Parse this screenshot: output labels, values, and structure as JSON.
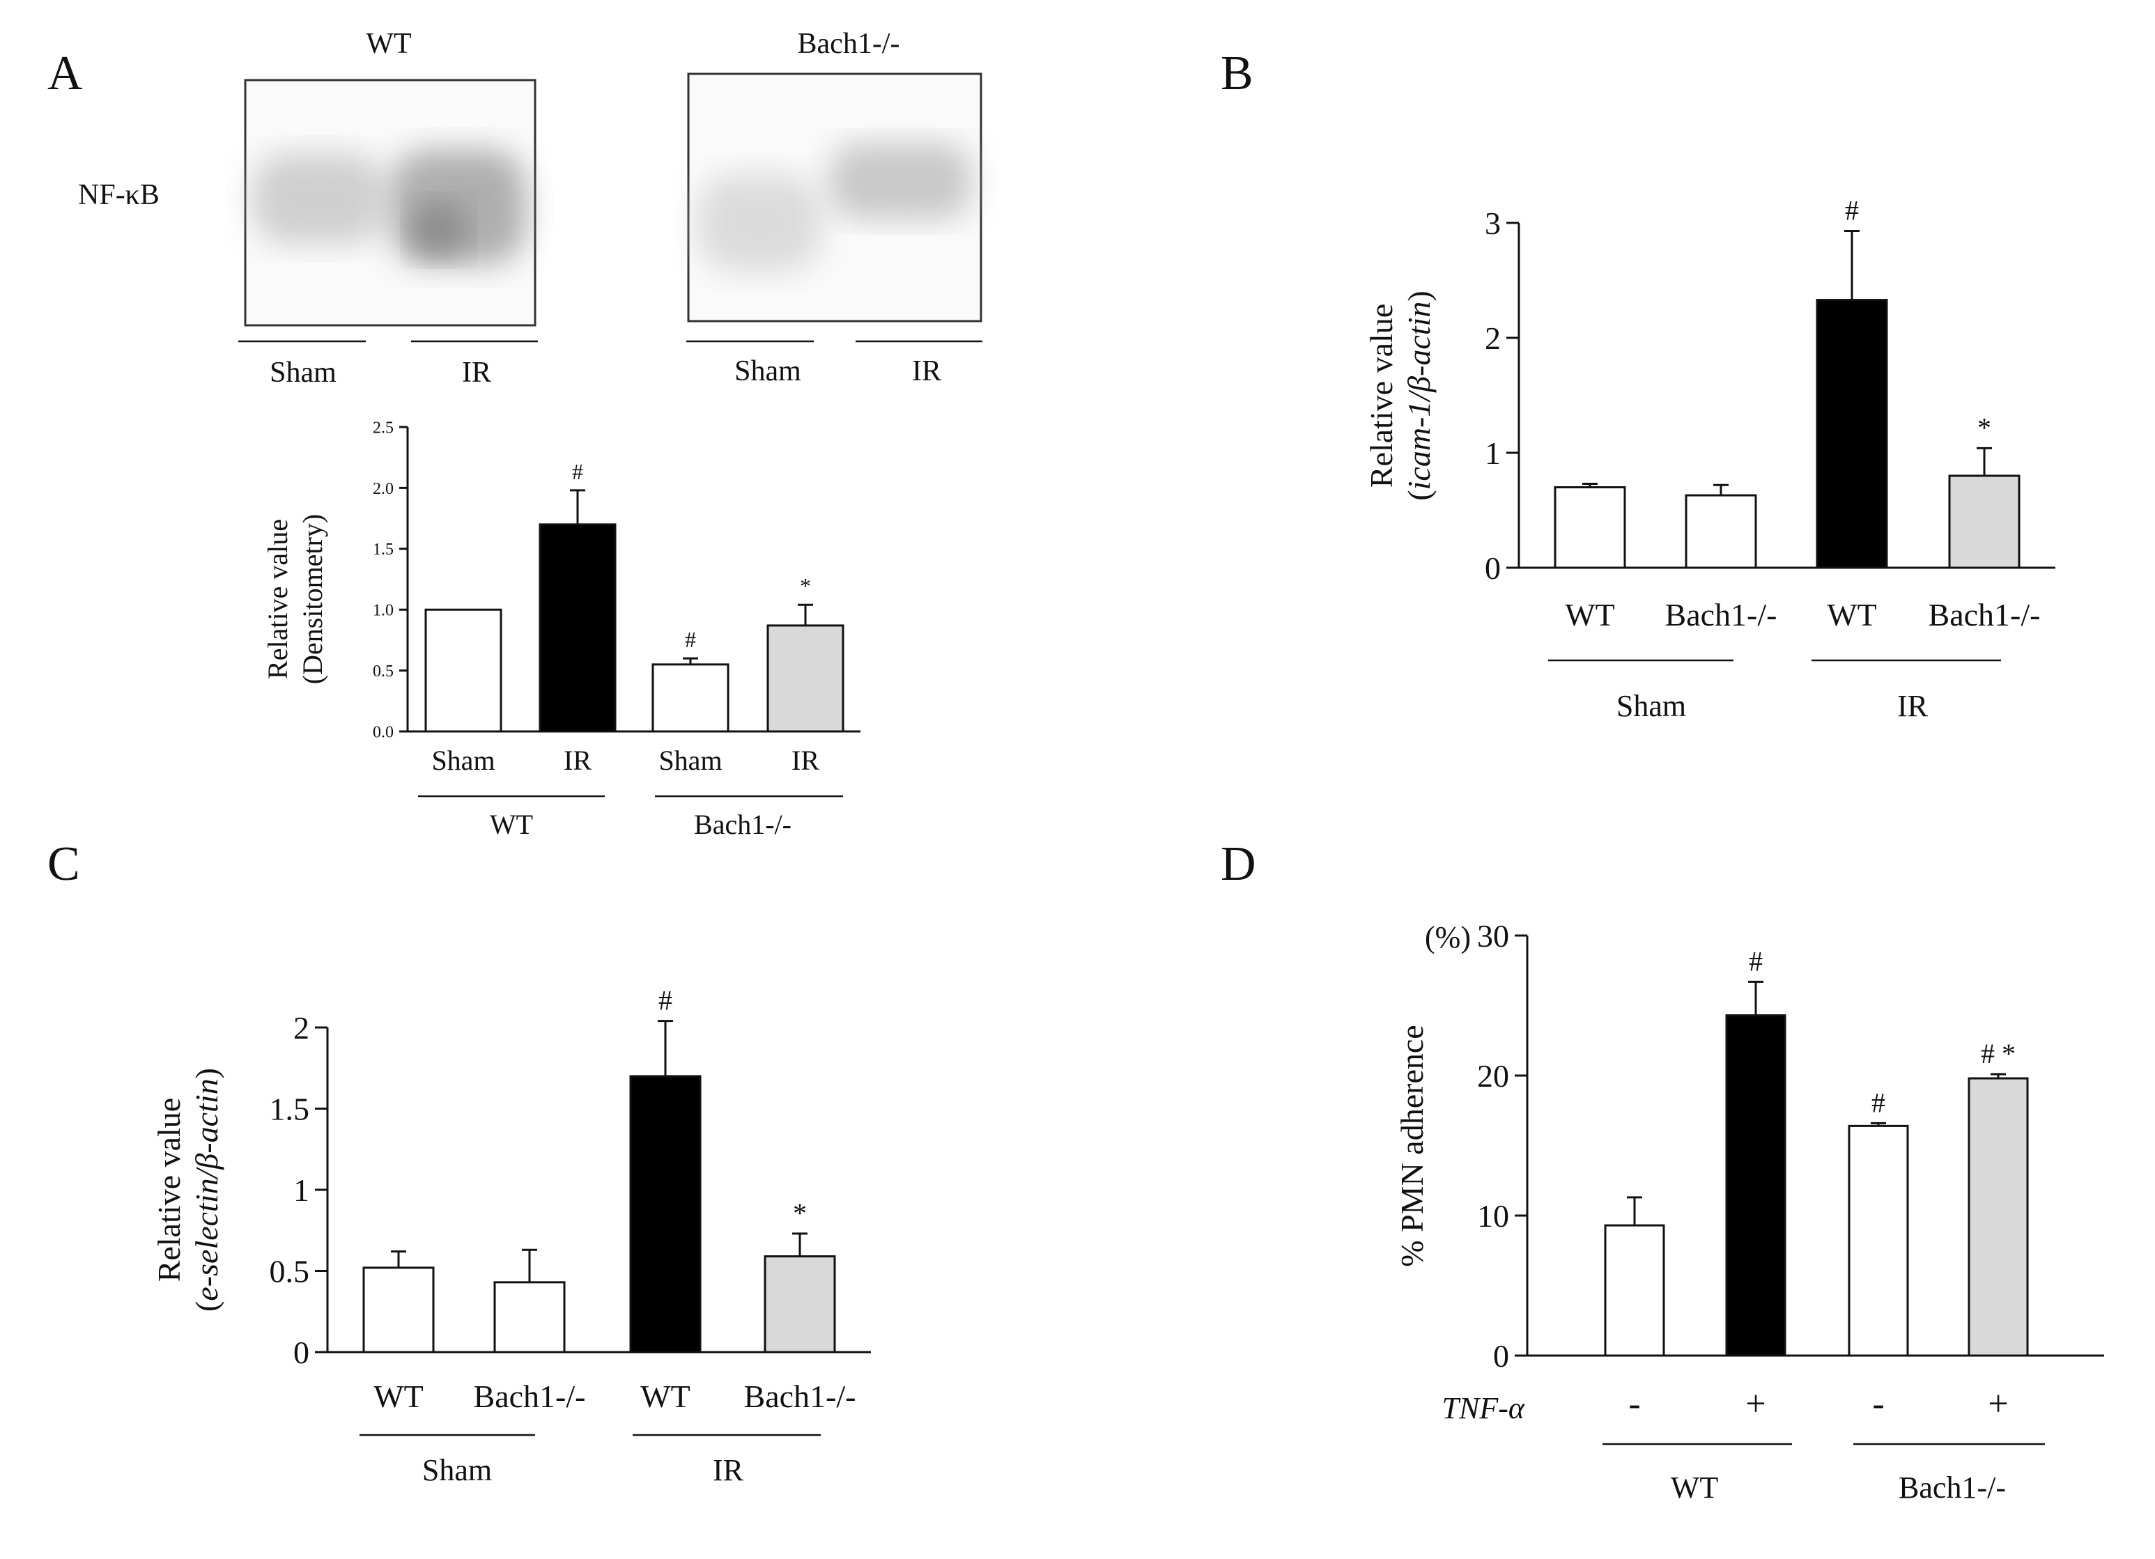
{
  "panels": {
    "A": {
      "letter": "A",
      "blot": {
        "row_label": "NF-κB",
        "groups": [
          {
            "title": "WT",
            "lane_labels": [
              "Sham",
              "IR"
            ]
          },
          {
            "title": "Bach1-/-",
            "lane_labels": [
              "Sham",
              "IR"
            ]
          }
        ]
      },
      "group_labels": [
        "WT",
        "Bach1-/-"
      ]
    },
    "B": {
      "letter": "B",
      "group_labels": [
        "Sham",
        "IR"
      ]
    },
    "C": {
      "letter": "C",
      "group_labels": [
        "Sham",
        "IR"
      ]
    },
    "D": {
      "letter": "D",
      "row_label": "TNF-α",
      "unit_label": "(%)",
      "group_labels": [
        "WT",
        "Bach1-/-"
      ]
    }
  },
  "chart_data": [
    {
      "id": "A",
      "type": "bar",
      "title": "",
      "ylabel": "Relative value",
      "ylabel2": "(Densitometry)",
      "ylim": [
        0,
        2.5
      ],
      "yticks": [
        0,
        0.5,
        1,
        1.5,
        2,
        2.5
      ],
      "ytick_labels": [
        "0.0",
        "0.5",
        "1.0",
        "1.5",
        "2.0",
        "2.5"
      ],
      "categories": [
        "Sham",
        "IR",
        "Sham",
        "IR"
      ],
      "values": [
        1.0,
        1.7,
        0.55,
        0.87
      ],
      "errors": [
        0.0,
        0.28,
        0.05,
        0.17
      ],
      "annotations": [
        "",
        "#",
        "#",
        "*"
      ],
      "fills": [
        "#ffffff",
        "#000000",
        "#ffffff",
        "#d9d9d9"
      ]
    },
    {
      "id": "B",
      "type": "bar",
      "title": "",
      "ylabel": "Relative value",
      "ylabel2": "(icam-1/β-actin)",
      "ylim": [
        0,
        3
      ],
      "yticks": [
        0,
        1,
        2,
        3
      ],
      "ytick_labels": [
        "0",
        "1",
        "2",
        "3"
      ],
      "categories": [
        "WT",
        "Bach1-/-",
        "WT",
        "Bach1-/-"
      ],
      "values": [
        0.7,
        0.63,
        2.33,
        0.8
      ],
      "errors": [
        0.03,
        0.09,
        0.6,
        0.24
      ],
      "annotations": [
        "",
        "",
        "#",
        "*"
      ],
      "fills": [
        "#ffffff",
        "#ffffff",
        "#000000",
        "#d9d9d9"
      ]
    },
    {
      "id": "C",
      "type": "bar",
      "title": "",
      "ylabel": "Relative value",
      "ylabel2": "(e-selectin/β-actin)",
      "ylim": [
        0,
        2
      ],
      "yticks": [
        0,
        0.5,
        1,
        1.5,
        2
      ],
      "ytick_labels": [
        "0",
        "0.5",
        "1",
        "1.5",
        "2"
      ],
      "categories": [
        "WT",
        "Bach1-/-",
        "WT",
        "Bach1-/-"
      ],
      "values": [
        0.52,
        0.43,
        1.7,
        0.59
      ],
      "errors": [
        0.1,
        0.2,
        0.34,
        0.14
      ],
      "annotations": [
        "",
        "",
        "#",
        "*"
      ],
      "fills": [
        "#ffffff",
        "#ffffff",
        "#000000",
        "#d9d9d9"
      ]
    },
    {
      "id": "D",
      "type": "bar",
      "title": "",
      "ylabel": "% PMN adherence",
      "ylabel2": "",
      "ylim": [
        0,
        30
      ],
      "yticks": [
        0,
        10,
        20,
        30
      ],
      "ytick_labels": [
        "0",
        "10",
        "20",
        "30"
      ],
      "categories": [
        "-",
        "+",
        "-",
        "+"
      ],
      "values": [
        9.3,
        24.3,
        16.4,
        19.8
      ],
      "errors": [
        2.0,
        2.4,
        0.2,
        0.3
      ],
      "annotations": [
        "",
        "#",
        "#",
        "# *"
      ],
      "fills": [
        "#ffffff",
        "#000000",
        "#ffffff",
        "#d9d9d9"
      ]
    }
  ]
}
